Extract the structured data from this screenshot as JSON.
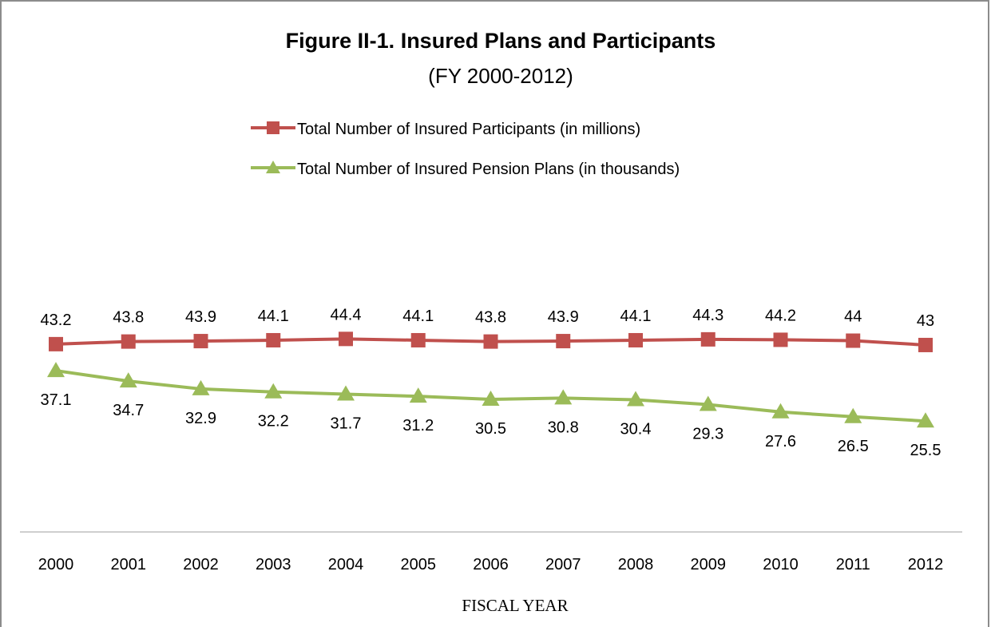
{
  "chart_data": {
    "type": "line",
    "title": "Figure II-1. Insured Plans and Participants",
    "subtitle": "(FY 2000-2012)",
    "xlabel": "FISCAL YEAR",
    "ylabel": "",
    "categories": [
      "2000",
      "2001",
      "2002",
      "2003",
      "2004",
      "2005",
      "2006",
      "2007",
      "2008",
      "2009",
      "2010",
      "2011",
      "2012"
    ],
    "series": [
      {
        "name": "Total Number of Insured Participants (in millions)",
        "values": [
          43.2,
          43.8,
          43.9,
          44.1,
          44.4,
          44.1,
          43.8,
          43.9,
          44.1,
          44.3,
          44.2,
          44,
          43
        ],
        "color": "#c0504d",
        "marker": "square",
        "label_position": "above"
      },
      {
        "name": "Total Number of Insured Pension Plans (in thousands)",
        "values": [
          37.1,
          34.7,
          32.9,
          32.2,
          31.7,
          31.2,
          30.5,
          30.8,
          30.4,
          29.3,
          27.6,
          26.5,
          25.5
        ],
        "color": "#9bbb59",
        "marker": "triangle",
        "label_position": "below"
      }
    ],
    "ylim": [
      0,
      70
    ],
    "grid": false,
    "axis_line_color": "#bfbfbf",
    "legend_position": "top"
  }
}
